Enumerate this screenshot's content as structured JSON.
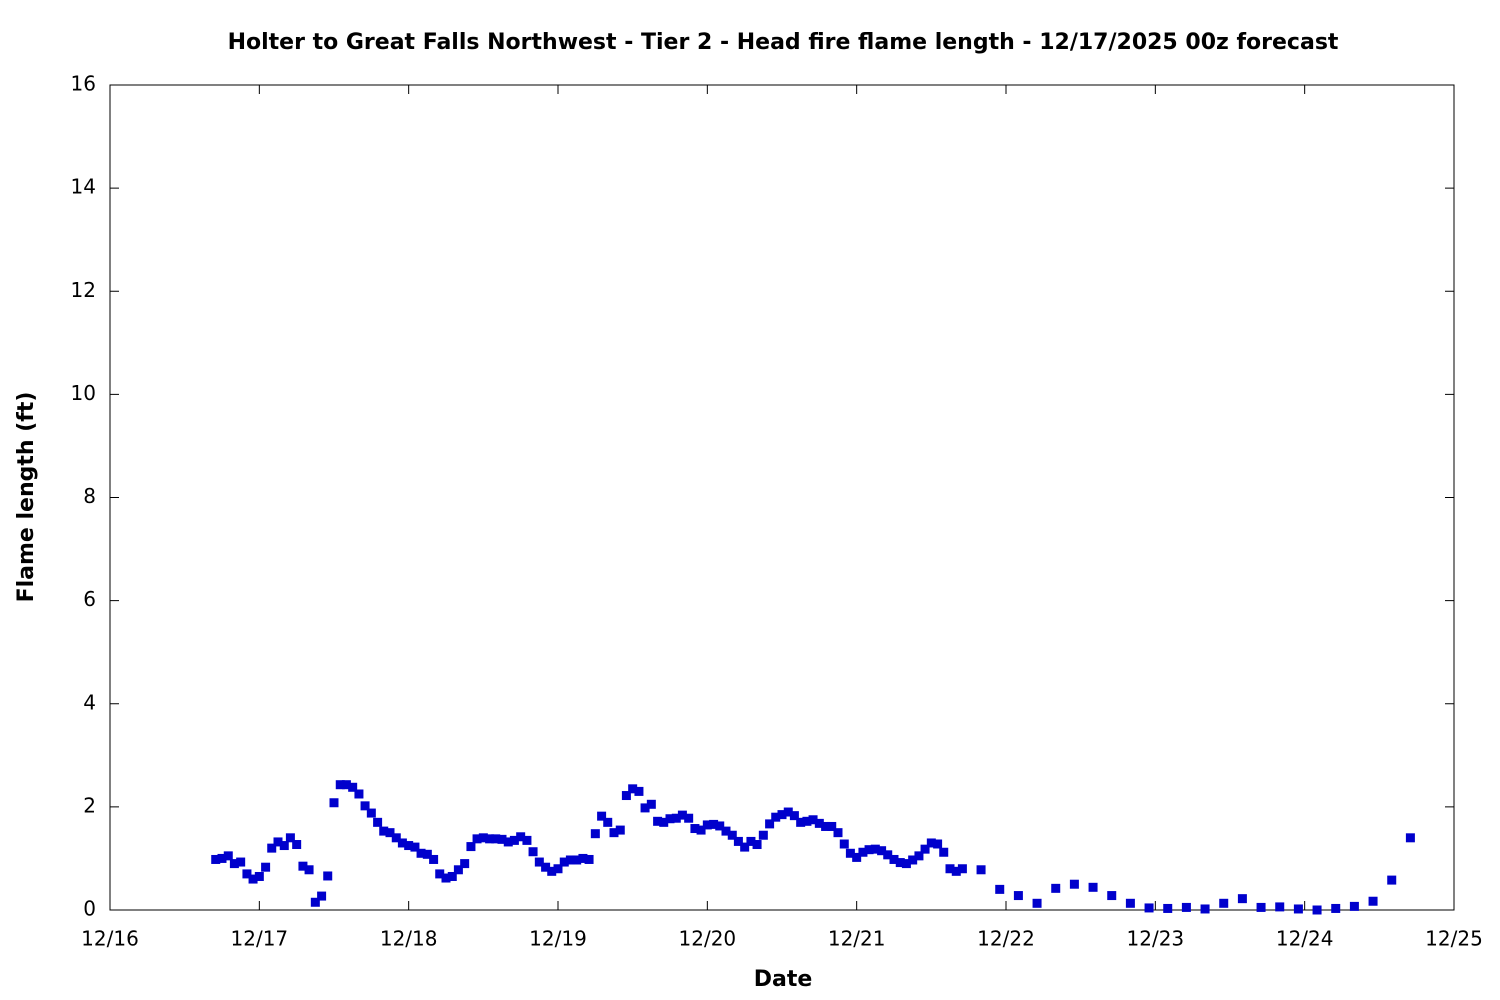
{
  "chart_data": {
    "type": "scatter",
    "title": "Holter to Great Falls Northwest - Tier 2 - Head fire flame length - 12/17/2025 00z forecast",
    "xlabel": "Date",
    "ylabel": "Flame length (ft)",
    "series": [
      {
        "color": "#0000cc",
        "x": [
          0.708,
          0.75,
          0.792,
          0.833,
          0.875,
          0.917,
          0.958,
          1,
          1.042,
          1.083,
          1.125,
          1.167,
          1.208,
          1.25,
          1.292,
          1.333,
          1.375,
          1.417,
          1.458,
          1.5,
          1.542,
          1.583,
          1.625,
          1.667,
          1.708,
          1.75,
          1.792,
          1.833,
          1.875,
          1.917,
          1.958,
          2,
          2.042,
          2.083,
          2.125,
          2.167,
          2.208,
          2.25,
          2.292,
          2.333,
          2.375,
          2.417,
          2.458,
          2.5,
          2.542,
          2.583,
          2.625,
          2.667,
          2.708,
          2.75,
          2.792,
          2.833,
          2.875,
          2.917,
          2.958,
          3,
          3.042,
          3.083,
          3.125,
          3.167,
          3.208,
          3.25,
          3.292,
          3.333,
          3.375,
          3.417,
          3.458,
          3.5,
          3.542,
          3.583,
          3.625,
          3.667,
          3.708,
          3.75,
          3.792,
          3.833,
          3.875,
          3.917,
          3.958,
          4,
          4.042,
          4.083,
          4.125,
          4.167,
          4.208,
          4.25,
          4.292,
          4.333,
          4.375,
          4.417,
          4.458,
          4.5,
          4.542,
          4.583,
          4.625,
          4.667,
          4.708,
          4.75,
          4.792,
          4.833,
          4.875,
          4.917,
          4.958,
          5,
          5.042,
          5.083,
          5.125,
          5.167,
          5.208,
          5.25,
          5.292,
          5.333,
          5.375,
          5.417,
          5.458,
          5.5,
          5.542,
          5.583,
          5.625,
          5.667,
          5.708,
          5.833,
          5.958,
          6.083,
          6.208,
          6.333,
          6.458,
          6.583,
          6.708,
          6.833,
          6.958,
          7.083,
          7.208,
          7.333,
          7.458,
          7.583,
          7.708,
          7.833,
          7.958,
          8.083,
          8.208,
          8.333,
          8.458,
          8.583,
          8.708
        ],
        "values": [
          0.98,
          1.0,
          1.05,
          0.9,
          0.93,
          0.7,
          0.6,
          0.65,
          0.83,
          1.2,
          1.32,
          1.25,
          1.4,
          1.27,
          0.85,
          0.78,
          0.15,
          0.27,
          0.66,
          2.08,
          2.43,
          2.43,
          2.38,
          2.25,
          2.02,
          1.88,
          1.7,
          1.53,
          1.5,
          1.4,
          1.3,
          1.25,
          1.22,
          1.1,
          1.08,
          0.98,
          0.7,
          0.62,
          0.65,
          0.78,
          0.9,
          1.23,
          1.38,
          1.4,
          1.38,
          1.38,
          1.37,
          1.32,
          1.35,
          1.42,
          1.35,
          1.13,
          0.93,
          0.83,
          0.75,
          0.8,
          0.93,
          0.97,
          0.97,
          1.0,
          0.98,
          1.48,
          1.82,
          1.7,
          1.5,
          1.55,
          2.22,
          2.35,
          2.3,
          1.98,
          2.05,
          1.72,
          1.7,
          1.77,
          1.78,
          1.84,
          1.78,
          1.58,
          1.55,
          1.65,
          1.66,
          1.63,
          1.53,
          1.45,
          1.33,
          1.22,
          1.33,
          1.27,
          1.45,
          1.67,
          1.8,
          1.85,
          1.9,
          1.83,
          1.7,
          1.72,
          1.75,
          1.68,
          1.62,
          1.62,
          1.5,
          1.28,
          1.1,
          1.02,
          1.12,
          1.17,
          1.18,
          1.15,
          1.07,
          0.98,
          0.92,
          0.9,
          0.97,
          1.05,
          1.18,
          1.3,
          1.28,
          1.12,
          0.8,
          0.75,
          0.8,
          0.78,
          0.4,
          0.28,
          0.13,
          0.42,
          0.5,
          0.44,
          0.28,
          0.13,
          0.04,
          0.03,
          0.05,
          0.02,
          0.13,
          0.22,
          0.05,
          0.06,
          0.02,
          0.0,
          0.03,
          0.07,
          0.17,
          0.58,
          1.4
        ]
      }
    ],
    "xlim": [
      0,
      9
    ],
    "xticks": [
      {
        "value": 0,
        "label": "12/16"
      },
      {
        "value": 1,
        "label": "12/17"
      },
      {
        "value": 2,
        "label": "12/18"
      },
      {
        "value": 3,
        "label": "12/19"
      },
      {
        "value": 4,
        "label": "12/20"
      },
      {
        "value": 5,
        "label": "12/21"
      },
      {
        "value": 6,
        "label": "12/22"
      },
      {
        "value": 7,
        "label": "12/23"
      },
      {
        "value": 8,
        "label": "12/24"
      },
      {
        "value": 9,
        "label": "12/25"
      }
    ],
    "ylim": [
      0,
      16
    ],
    "yticks": [
      0,
      2,
      4,
      6,
      8,
      10,
      12,
      14,
      16
    ],
    "grid": false
  }
}
